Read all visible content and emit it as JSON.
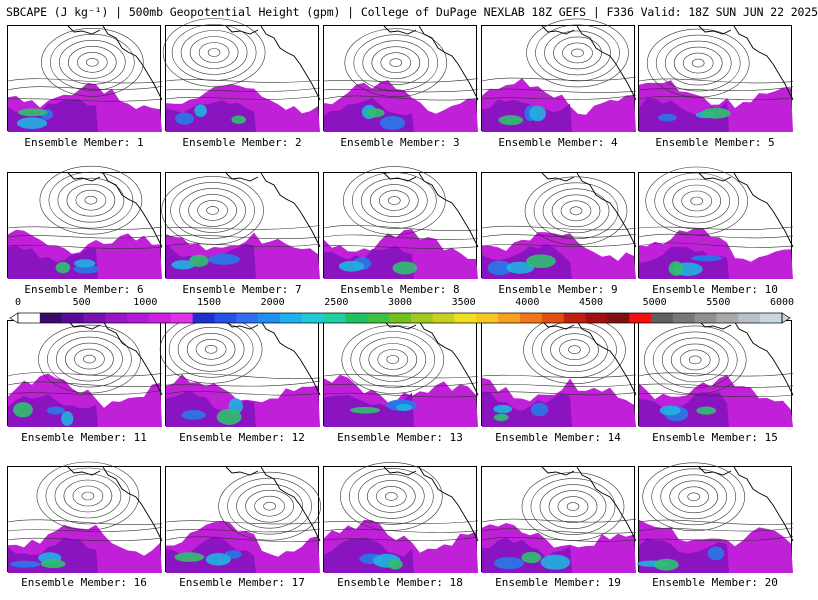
{
  "title": "SBCAPE (J kg⁻¹) | 500mb Geopotential Height (gpm) | College of DuPage NEXLAB 18Z GEFS | F336 Valid: 18Z SUN JUN 22 2025",
  "panels": [
    {
      "label": "Ensemble Member: 1"
    },
    {
      "label": "Ensemble Member: 2"
    },
    {
      "label": "Ensemble Member: 3"
    },
    {
      "label": "Ensemble Member: 4"
    },
    {
      "label": "Ensemble Member: 5"
    },
    {
      "label": "Ensemble Member: 6"
    },
    {
      "label": "Ensemble Member: 7"
    },
    {
      "label": "Ensemble Member: 8"
    },
    {
      "label": "Ensemble Member: 9"
    },
    {
      "label": "Ensemble Member: 10"
    },
    {
      "label": "Ensemble Member: 11"
    },
    {
      "label": "Ensemble Member: 12"
    },
    {
      "label": "Ensemble Member: 13"
    },
    {
      "label": "Ensemble Member: 14"
    },
    {
      "label": "Ensemble Member: 15"
    },
    {
      "label": "Ensemble Member: 16"
    },
    {
      "label": "Ensemble Member: 17"
    },
    {
      "label": "Ensemble Member: 18"
    },
    {
      "label": "Ensemble Member: 19"
    },
    {
      "label": "Ensemble Member: 20"
    }
  ],
  "colorbar": {
    "ticks": [
      "0",
      "500",
      "1000",
      "1500",
      "2000",
      "2500",
      "3000",
      "3500",
      "4000",
      "4500",
      "5000",
      "5500",
      "6000"
    ],
    "colors": [
      "#ffffff",
      "#3a0a6a",
      "#5a0a9a",
      "#7a10b0",
      "#9a14c8",
      "#b418d8",
      "#cc20e0",
      "#e030e8",
      "#2030d0",
      "#2850e8",
      "#3070f0",
      "#2090f0",
      "#20b0f0",
      "#20c8d8",
      "#20d0a0",
      "#20c060",
      "#40c040",
      "#70c020",
      "#a0c820",
      "#c8d020",
      "#f0e020",
      "#f8c820",
      "#f8a020",
      "#f07818",
      "#e05010",
      "#c02010",
      "#a01010",
      "#801010",
      "#f01010",
      "#606060",
      "#787878",
      "#909090",
      "#a8a8a8",
      "#b8c0c8",
      "#c8d8e0"
    ]
  }
}
